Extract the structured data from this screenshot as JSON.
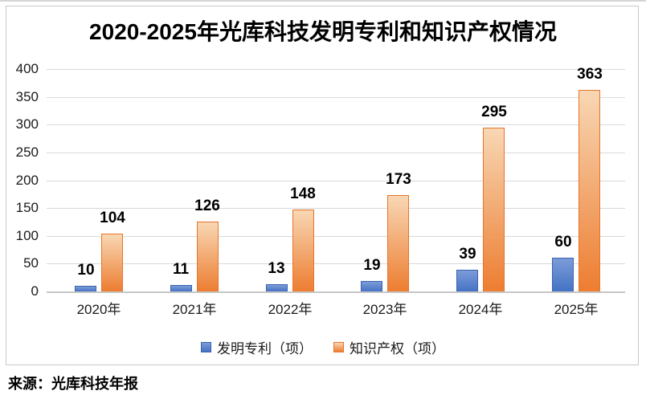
{
  "chart_data": {
    "type": "bar",
    "title": "2020-2025年光库科技发明专利和知识产权情况",
    "categories": [
      "2020年",
      "2021年",
      "2022年",
      "2023年",
      "2024年",
      "2025年"
    ],
    "series": [
      {
        "name": "发明专利（项）",
        "values": [
          10,
          11,
          13,
          19,
          39,
          60
        ],
        "color": "#4472C4",
        "color_light": "#7C9CD8",
        "border_color": "#3A62AE"
      },
      {
        "name": "知识产权（项）",
        "values": [
          104,
          126,
          148,
          173,
          295,
          363
        ],
        "color": "#ED7D31",
        "color_light": "#F8D7B4",
        "border_color": "#E8742A"
      }
    ],
    "ylim": [
      0,
      400
    ],
    "ytick_step": 50,
    "yticks": [
      0,
      50,
      100,
      150,
      200,
      250,
      300,
      350,
      400
    ],
    "grid": true,
    "value_labels": true,
    "legend_position": "bottom",
    "xlabel": "",
    "ylabel": ""
  },
  "source": {
    "label": "来源：光库科技年报"
  },
  "colors": {
    "gridline": "#D9D9D9",
    "axis_line": "#C6C6C6",
    "frame_border": "#C9C9C9",
    "top_line": "#D5D5D5",
    "text": "#000000"
  }
}
